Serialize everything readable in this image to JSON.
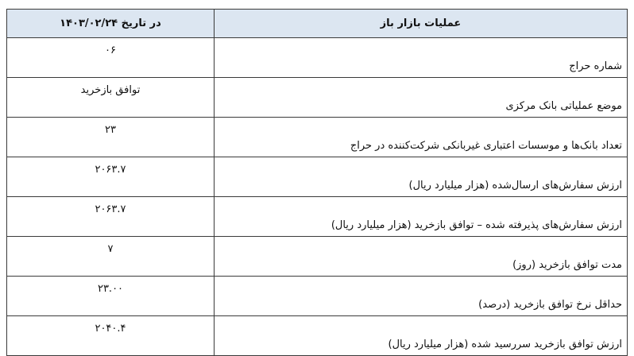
{
  "header": {
    "label_col": "عملیات بازار باز",
    "value_col": "در تاریخ ۱۴۰۳/۰۲/۲۴"
  },
  "rows": [
    {
      "label": "شماره حراج",
      "value": "۰۶"
    },
    {
      "label": "موضع عملیاتی بانک مرکزی",
      "value": "توافق بازخرید"
    },
    {
      "label": "تعداد بانک‌ها و موسسات اعتباری غیربانکی شرکت‌کننده در حراج",
      "value": "۲۳"
    },
    {
      "label": "ارزش سفارش‌های ارسال‌شده (هزار میلیارد ریال)",
      "value": "۲۰۶۳.۷"
    },
    {
      "label": "ارزش سفارش‌های پذیرفته شده – توافق بازخرید (هزار میلیارد ریال)",
      "value": "۲۰۶۳.۷"
    },
    {
      "label": "مدت توافق بازخرید (روز)",
      "value": "۷"
    },
    {
      "label": "حداقل نرخ توافق بازخرید (درصد)",
      "value": "۲۳.۰۰"
    },
    {
      "label": "ارزش توافق بازخرید سررسید شده (هزار میلیارد ریال)",
      "value": "۲۰۴۰.۴"
    }
  ],
  "colors": {
    "header_bg": "#dce6f1",
    "border": "#3a3a3a"
  }
}
